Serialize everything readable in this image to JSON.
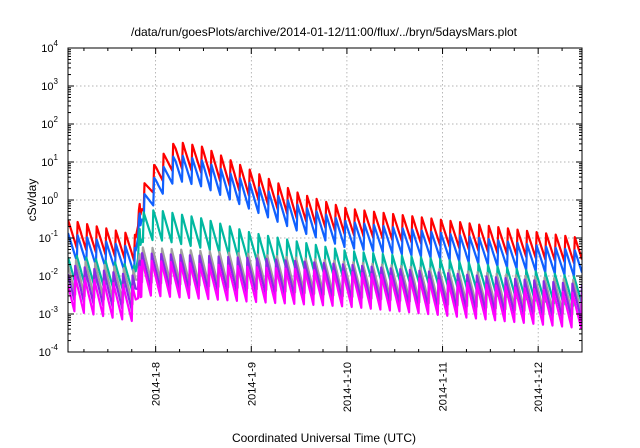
{
  "chart_data": {
    "type": "line",
    "title": "/data/run/goesPlots/archive/2014-01-12/11:00/flux/../bryn/5daysMars.plot",
    "xlabel": "Coordinated Universal Time (UTC)",
    "ylabel": "cSv/day",
    "yscale": "log",
    "ylim": [
      0.0001,
      10000
    ],
    "xlim": [
      "2014-01-07T02:00",
      "2014-01-12T11:00"
    ],
    "grid": true,
    "y_ticks": [
      {
        "base": "10",
        "exp": "-4"
      },
      {
        "base": "10",
        "exp": "-3"
      },
      {
        "base": "10",
        "exp": "-2"
      },
      {
        "base": "10",
        "exp": "-1"
      },
      {
        "base": "10",
        "exp": "0"
      },
      {
        "base": "10",
        "exp": "1"
      },
      {
        "base": "10",
        "exp": "2"
      },
      {
        "base": "10",
        "exp": "3"
      },
      {
        "base": "10",
        "exp": "4"
      }
    ],
    "x_ticks": [
      "2014-1-8",
      "2014-1-9",
      "2014-1-10",
      "2014-1-11",
      "2014-1-12"
    ],
    "event": {
      "onset": "2014-01-07T20:00"
    },
    "sawtooth_period_hours": 2.4,
    "series": [
      {
        "color": "#ff0000",
        "keypoints": [
          [
            "2014-01-07T02:00",
            0.3
          ],
          [
            "2014-01-07T19:00",
            0.12
          ],
          [
            "2014-01-07T20:30",
            2.0
          ],
          [
            "2014-01-08T00:00",
            10
          ],
          [
            "2014-01-08T05:00",
            35
          ],
          [
            "2014-01-08T12:00",
            25
          ],
          [
            "2014-01-09T00:00",
            6
          ],
          [
            "2014-01-09T12:00",
            1.5
          ],
          [
            "2014-01-10T00:00",
            0.6
          ],
          [
            "2014-01-11T00:00",
            0.3
          ],
          [
            "2014-01-12T11:00",
            0.1
          ]
        ]
      },
      {
        "color": "#1060ff",
        "keypoints": [
          [
            "2014-01-07T02:00",
            0.15
          ],
          [
            "2014-01-07T19:00",
            0.06
          ],
          [
            "2014-01-07T20:30",
            1.2
          ],
          [
            "2014-01-08T00:00",
            5
          ],
          [
            "2014-01-08T05:00",
            18
          ],
          [
            "2014-01-08T12:00",
            12
          ],
          [
            "2014-01-09T00:00",
            3
          ],
          [
            "2014-01-09T12:00",
            0.8
          ],
          [
            "2014-01-10T00:00",
            0.3
          ],
          [
            "2014-01-11T00:00",
            0.15
          ],
          [
            "2014-01-12T11:00",
            0.05
          ]
        ]
      },
      {
        "color": "#00b8a0",
        "keypoints": [
          [
            "2014-01-07T02:00",
            0.04
          ],
          [
            "2014-01-07T19:00",
            0.02
          ],
          [
            "2014-01-07T20:30",
            0.5
          ],
          [
            "2014-01-08T00:00",
            0.6
          ],
          [
            "2014-01-08T12:00",
            0.35
          ],
          [
            "2014-01-09T00:00",
            0.15
          ],
          [
            "2014-01-10T00:00",
            0.05
          ],
          [
            "2014-01-11T00:00",
            0.03
          ],
          [
            "2014-01-12T11:00",
            0.01
          ]
        ]
      },
      {
        "color": "#a0a0a0",
        "keypoints": [
          [
            "2014-01-07T02:00",
            0.03
          ],
          [
            "2014-01-07T19:00",
            0.015
          ],
          [
            "2014-01-07T20:30",
            0.06
          ],
          [
            "2014-01-09T00:00",
            0.04
          ],
          [
            "2014-01-10T00:00",
            0.025
          ],
          [
            "2014-01-12T11:00",
            0.008
          ]
        ]
      },
      {
        "color": "#8a2be2",
        "keypoints": [
          [
            "2014-01-07T02:00",
            0.02
          ],
          [
            "2014-01-07T19:00",
            0.01
          ],
          [
            "2014-01-07T20:30",
            0.04
          ],
          [
            "2014-01-09T00:00",
            0.03
          ],
          [
            "2014-01-10T00:00",
            0.02
          ],
          [
            "2014-01-12T11:00",
            0.006
          ]
        ]
      },
      {
        "color": "#ff00ff",
        "keypoints": [
          [
            "2014-01-07T02:00",
            0.012
          ],
          [
            "2014-01-07T19:00",
            0.006
          ],
          [
            "2014-01-07T20:30",
            0.03
          ],
          [
            "2014-01-09T00:00",
            0.02
          ],
          [
            "2014-01-10T00:00",
            0.015
          ],
          [
            "2014-01-12T11:00",
            0.004
          ]
        ]
      }
    ]
  }
}
